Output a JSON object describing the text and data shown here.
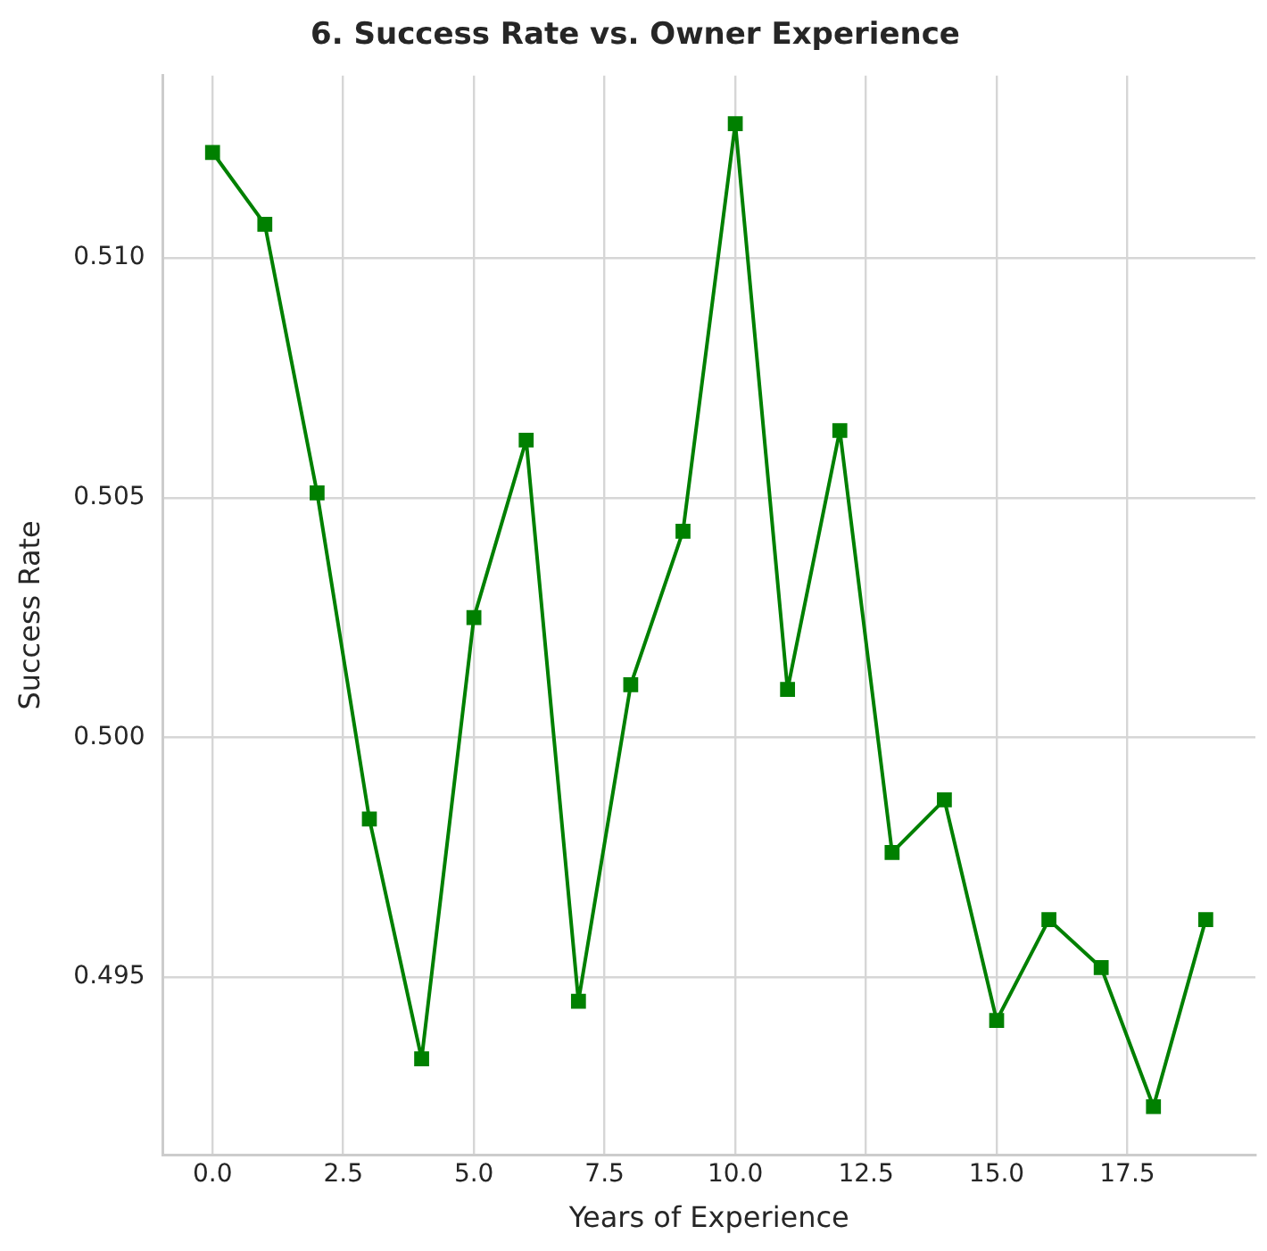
{
  "chart_data": {
    "type": "line",
    "title": "6. Success Rate vs. Owner Experience",
    "xlabel": "Years of Experience",
    "ylabel": "Success Rate",
    "x": [
      0,
      1,
      2,
      3,
      4,
      5,
      6,
      7,
      8,
      9,
      10,
      11,
      12,
      13,
      14,
      15,
      16,
      17,
      18,
      19
    ],
    "series": [
      {
        "color": "#008000",
        "values": [
          0.5122,
          0.5107,
          0.5051,
          0.4983,
          0.4933,
          0.5025,
          0.5062,
          0.4945,
          0.5011,
          0.5043,
          0.5128,
          0.501,
          0.5064,
          0.4976,
          0.4987,
          0.4941,
          0.4962,
          0.4952,
          0.4923,
          0.4962
        ]
      }
    ],
    "xlim": [
      -0.95,
      19.95
    ],
    "ylim": [
      0.4913,
      0.5138
    ],
    "xticks": [
      {
        "value": 0,
        "label": "0.0"
      },
      {
        "value": 2.5,
        "label": "2.5"
      },
      {
        "value": 5,
        "label": "5.0"
      },
      {
        "value": 7.5,
        "label": "7.5"
      },
      {
        "value": 10,
        "label": "10.0"
      },
      {
        "value": 12.5,
        "label": "12.5"
      },
      {
        "value": 15,
        "label": "15.0"
      },
      {
        "value": 17.5,
        "label": "17.5"
      }
    ],
    "yticks": [
      {
        "value": 0.495,
        "label": "0.495"
      },
      {
        "value": 0.5,
        "label": "0.500"
      },
      {
        "value": 0.505,
        "label": "0.505"
      },
      {
        "value": 0.51,
        "label": "0.510"
      }
    ],
    "grid": true,
    "legend": false,
    "marker": "square",
    "line_style": "solid"
  }
}
